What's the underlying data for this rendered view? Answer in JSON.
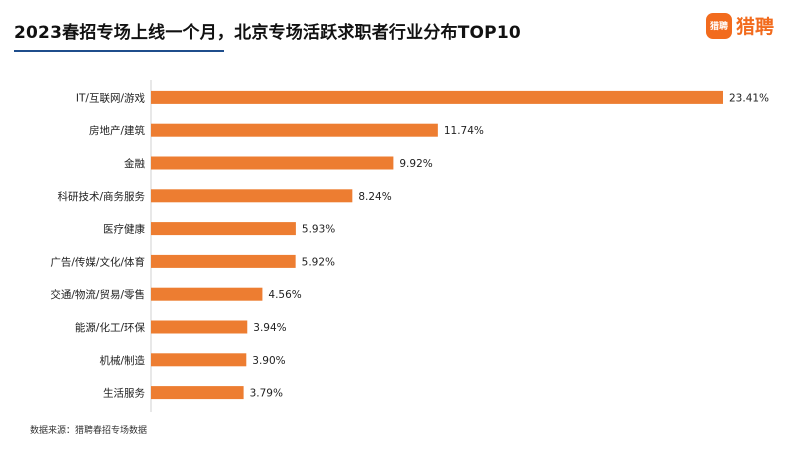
{
  "header": {
    "title": "2023春招专场上线一个月，北京专场活跃求职者行业分布TOP10",
    "logo_badge": "猎聘",
    "logo_text": "猎聘"
  },
  "footer": {
    "source": "数据来源：猎聘春招专场数据"
  },
  "colors": {
    "bar": "#ed7d31",
    "axis": "#d0d0d0",
    "brand": "#f26b1d",
    "underline": "#1f4e8c"
  },
  "chart_data": {
    "type": "bar",
    "orientation": "horizontal",
    "categories": [
      "IT/互联网/游戏",
      "房地产/建筑",
      "金融",
      "科研技术/商务服务",
      "医疗健康",
      "广告/传媒/文化/体育",
      "交通/物流/贸易/零售",
      "能源/化工/环保",
      "机械/制造",
      "生活服务"
    ],
    "values": [
      23.41,
      11.74,
      9.92,
      8.24,
      5.93,
      5.92,
      4.56,
      3.94,
      3.9,
      3.79
    ],
    "value_labels": [
      "23.41%",
      "11.74%",
      "9.92%",
      "8.24%",
      "5.93%",
      "5.92%",
      "4.56%",
      "3.94%",
      "3.90%",
      "3.79%"
    ],
    "title": "2023春招专场上线一个月，北京专场活跃求职者行业分布TOP10",
    "xlabel": "",
    "ylabel": "",
    "xlim": [
      0,
      23.41
    ],
    "grid": false,
    "legend": "none"
  }
}
